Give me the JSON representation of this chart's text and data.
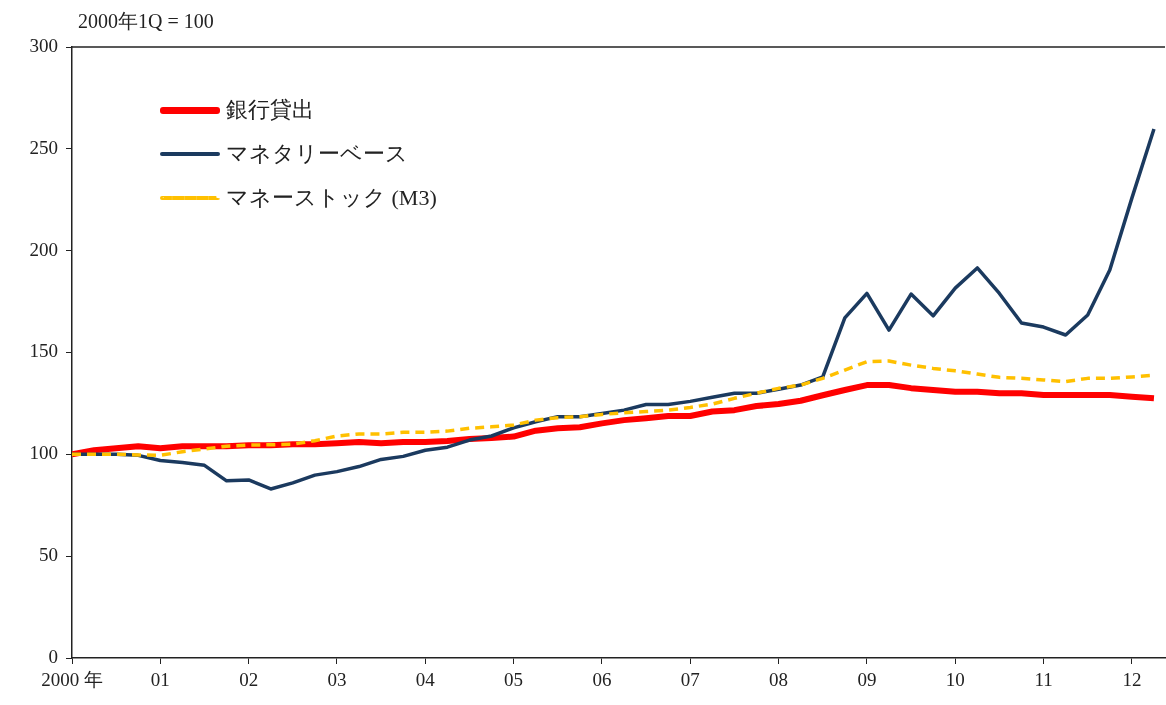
{
  "chart_data": {
    "type": "line",
    "ylabel": "2000年1Q = 100",
    "x": [
      2000,
      2000.25,
      2000.5,
      2000.75,
      2001,
      2001.25,
      2001.5,
      2001.75,
      2002,
      2002.25,
      2002.5,
      2002.75,
      2003,
      2003.25,
      2003.5,
      2003.75,
      2004,
      2004.25,
      2004.5,
      2004.75,
      2005,
      2005.25,
      2005.5,
      2005.75,
      2006,
      2006.25,
      2006.5,
      2006.75,
      2007,
      2007.25,
      2007.5,
      2007.75,
      2008,
      2008.25,
      2008.5,
      2008.75,
      2009,
      2009.25,
      2009.5,
      2009.75,
      2010,
      2010.25,
      2010.5,
      2010.75,
      2011,
      2011.25,
      2011.5,
      2011.75,
      2012,
      2012.25
    ],
    "series": [
      {
        "name": "銀行貸出",
        "color": "#ff0000",
        "values": [
          100,
          102,
          103,
          104,
          103,
          104,
          104,
          104,
          104.5,
          104.5,
          105,
          105,
          105.4,
          106,
          105.4,
          106,
          106,
          106.5,
          107.5,
          108,
          108.7,
          111.6,
          112.8,
          113.3,
          115.2,
          116.8,
          117.7,
          118.8,
          118.8,
          121,
          121.7,
          123.7,
          124.7,
          126.3,
          129,
          131.6,
          134,
          134,
          132.5,
          131.6,
          130.7,
          130.7,
          130,
          130,
          129.1,
          129.1,
          129.1,
          129.1,
          128.3,
          127.5
        ]
      },
      {
        "name": "マネタリーベース",
        "color": "#1b3a5f",
        "values": [
          100,
          100,
          100,
          99.5,
          97,
          96,
          94.6,
          87,
          87.4,
          83,
          86,
          89.8,
          91.5,
          94,
          97.5,
          99,
          102,
          103.5,
          107,
          109,
          113,
          116,
          118.5,
          118.5,
          120,
          121.7,
          124.5,
          124.5,
          126,
          128,
          130,
          130,
          132,
          134,
          138,
          167,
          179,
          161,
          178.7,
          168,
          181.6,
          191.5,
          179,
          164.5,
          162.5,
          158.6,
          168.4,
          190.5,
          225.8,
          259.7
        ]
      },
      {
        "name": "マネーストック (M3)",
        "color": "#ffc000",
        "line_style": "dashed",
        "values": [
          100,
          100,
          100,
          99.7,
          99.5,
          101.3,
          102.6,
          104,
          104.5,
          104.7,
          105,
          106.7,
          109,
          110,
          110,
          110.8,
          110.8,
          111.4,
          112.8,
          113.5,
          114.4,
          116.8,
          118,
          118.5,
          119.6,
          120.4,
          121,
          121.7,
          123,
          124.7,
          127.5,
          130,
          132.4,
          134,
          137.3,
          141.4,
          145.5,
          145.8,
          143.8,
          142.2,
          141,
          139.4,
          137.8,
          137.3,
          136.5,
          135.7,
          137.3,
          137.3,
          138,
          138.8
        ]
      }
    ],
    "xlim": [
      2000,
      2012.375
    ],
    "xticks": [
      {
        "value": 2000,
        "label": "2000 年"
      },
      {
        "value": 2001,
        "label": "01"
      },
      {
        "value": 2002,
        "label": "02"
      },
      {
        "value": 2003,
        "label": "03"
      },
      {
        "value": 2004,
        "label": "04"
      },
      {
        "value": 2005,
        "label": "05"
      },
      {
        "value": 2006,
        "label": "06"
      },
      {
        "value": 2007,
        "label": "07"
      },
      {
        "value": 2008,
        "label": "08"
      },
      {
        "value": 2009,
        "label": "09"
      },
      {
        "value": 2010,
        "label": "10"
      },
      {
        "value": 2011,
        "label": "11"
      },
      {
        "value": 2012,
        "label": "12"
      }
    ],
    "ylim": [
      0,
      300
    ],
    "yticks": [
      0,
      50,
      100,
      150,
      200,
      250,
      300
    ],
    "grid": false,
    "legend": "top left",
    "marker": "none"
  }
}
